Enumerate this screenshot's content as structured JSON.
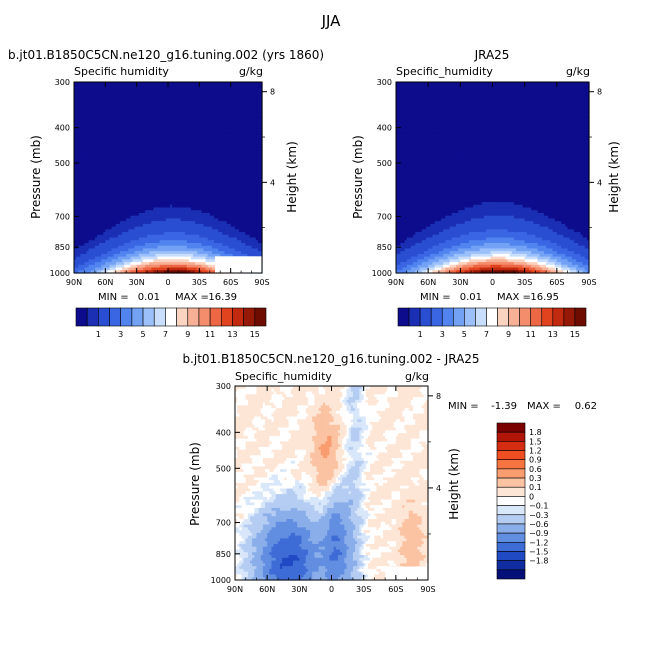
{
  "figure_title": "JJA",
  "chart_data": [
    {
      "type": "heatmap",
      "title": "b.jt01.B1850C5CN.ne120_g16.tuning.002 (yrs 1860)",
      "subtitle": "Specific humidity",
      "units": "g/kg",
      "xlabel": "",
      "ylabel": "Pressure (mb)",
      "y2label": "Height (km)",
      "x_ticks": [
        "90N",
        "60N",
        "30N",
        "0",
        "30S",
        "60S",
        "90S"
      ],
      "y_ticks": [
        300,
        400,
        500,
        700,
        850,
        1000
      ],
      "y2_ticks": [
        8,
        4
      ],
      "ylim": [
        300,
        1000
      ],
      "y_scale": "log",
      "stats": {
        "min_label": "MIN =",
        "min": "0.01",
        "max_label": "MAX =",
        "max": "16.39"
      },
      "field": {
        "peak": 16.39,
        "peak_lat": 5,
        "peak_p": 1000,
        "cap_p": 420,
        "base_half_width": 50,
        "wing_scale": 1.0
      }
    },
    {
      "type": "heatmap",
      "title": "JRA25",
      "subtitle": "Specific_humidity",
      "units": "g/kg",
      "xlabel": "",
      "ylabel": "Pressure (mb)",
      "y2label": "Height (km)",
      "x_ticks": [
        "90N",
        "60N",
        "30N",
        "0",
        "30S",
        "60S",
        "90S"
      ],
      "y_ticks": [
        300,
        400,
        500,
        700,
        850,
        1000
      ],
      "y2_ticks": [
        8,
        4
      ],
      "ylim": [
        300,
        1000
      ],
      "y_scale": "log",
      "stats": {
        "min_label": "MIN =",
        "min": "0.01",
        "max_label": "MAX =",
        "max": "16.95"
      },
      "field": {
        "peak": 16.95,
        "peak_lat": 5,
        "peak_p": 1000,
        "cap_p": 400,
        "base_half_width": 52,
        "wing_scale": 1.0
      }
    },
    {
      "type": "heatmap",
      "title": "b.jt01.B1850C5CN.ne120_g16.tuning.002 - JRA25",
      "subtitle": "Specific_humidity",
      "units": "g/kg",
      "xlabel": "",
      "ylabel": "Pressure (mb)",
      "y2label": "Height (km)",
      "x_ticks": [
        "90N",
        "60N",
        "30N",
        "0",
        "30S",
        "60S",
        "90S"
      ],
      "y_ticks": [
        300,
        400,
        500,
        700,
        850,
        1000
      ],
      "y2_ticks": [
        8,
        4
      ],
      "ylim": [
        300,
        1000
      ],
      "y_scale": "log",
      "stats": {
        "min_label": "MIN =",
        "min": "-1.39",
        "max_label": "MAX =",
        "max": "0.62"
      }
    }
  ],
  "colorbar_abs": {
    "levels": [
      0.5,
      1,
      2,
      3,
      4,
      5,
      6,
      7,
      8,
      9,
      10,
      11,
      12,
      13,
      14,
      15
    ],
    "tick_labels": [
      "1",
      "3",
      "5",
      "7",
      "9",
      "11",
      "13",
      "15"
    ],
    "colors": [
      "#0c0c8c",
      "#1a2fb4",
      "#2a4ed1",
      "#3a66e4",
      "#5284ef",
      "#73a2f5",
      "#9cc0f9",
      "#c8defc",
      "#ffffff",
      "#fbd3c1",
      "#f7b096",
      "#f38d6c",
      "#ee6744",
      "#e2431f",
      "#c22a10",
      "#961806",
      "#6e0c02"
    ]
  },
  "colorbar_diff": {
    "levels": [
      -1.8,
      -1.5,
      -1.2,
      -0.9,
      -0.6,
      -0.3,
      -0.1,
      0,
      0.1,
      0.3,
      0.6,
      0.9,
      1.2,
      1.5,
      1.8
    ],
    "tick_labels": [
      "1.8",
      "1.5",
      "1.2",
      "0.9",
      "0.6",
      "0.3",
      "0.1",
      "0",
      "−0.1",
      "−0.3",
      "−0.6",
      "−0.9",
      "−1.2",
      "−1.5",
      "−1.8"
    ],
    "colors": [
      "#7b0000",
      "#b01508",
      "#d42d12",
      "#ee4e22",
      "#f6743f",
      "#f99c6f",
      "#fbc3a2",
      "#fde6d6",
      "#ffffff",
      "#d9e7fa",
      "#b5cdf2",
      "#8aaeea",
      "#628ee1",
      "#3e6cd6",
      "#2049c4",
      "#0f2ca0",
      "#050f78"
    ]
  }
}
